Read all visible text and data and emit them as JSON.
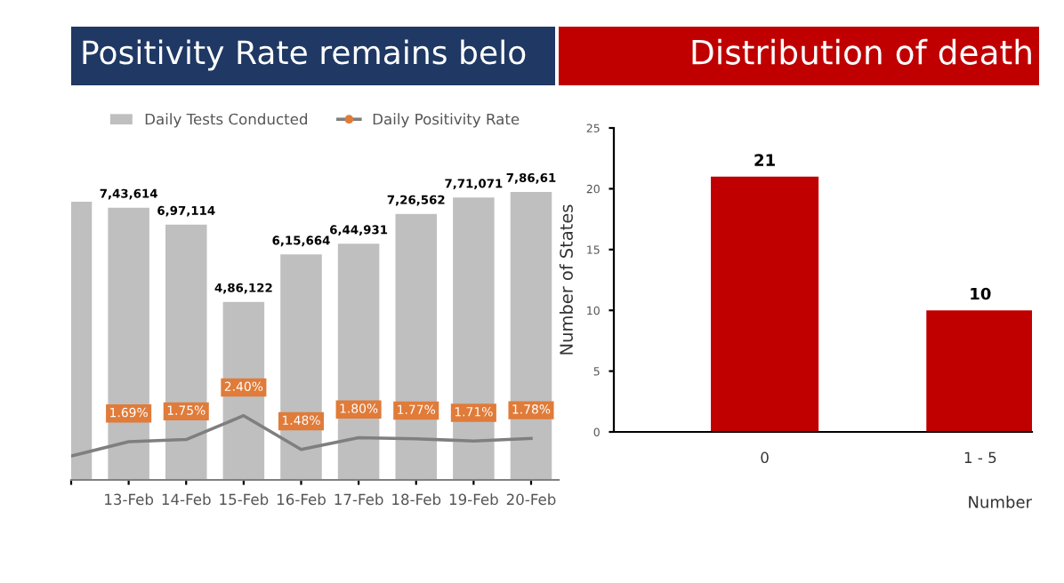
{
  "chart_data": [
    {
      "type": "bar",
      "title": "Positivity Rate remains belo",
      "categories": [
        null,
        "13-Feb",
        "14-Feb",
        "15-Feb",
        "16-Feb",
        "17-Feb",
        "18-Feb",
        "19-Feb",
        "20-Feb"
      ],
      "series": [
        {
          "name": "Daily Tests Conducted",
          "color": "#bfbfbf",
          "values": [
            760000,
            743614,
            697114,
            486122,
            615664,
            644931,
            726562,
            771071,
            786610
          ],
          "value_labels": [
            null,
            "7,43,614",
            "6,97,114",
            "4,86,122",
            "6,15,664",
            "6,44,931",
            "7,26,562",
            "7,71,071",
            "7,86,61"
          ]
        },
        {
          "name": "Daily Positivity Rate",
          "type": "line",
          "axis": "y2",
          "color": "#7f7f7f",
          "values": [
            1.3,
            1.69,
            1.75,
            2.4,
            1.48,
            1.8,
            1.77,
            1.71,
            1.78
          ],
          "value_labels": [
            null,
            "1.69%",
            "1.75%",
            "2.40%",
            "1.48%",
            "1.80%",
            "1.77%",
            "1.71%",
            "1.78%"
          ]
        }
      ],
      "legend": "top",
      "tick_labels": "x"
    },
    {
      "type": "bar",
      "title": "Distribution of death",
      "categories": [
        "0",
        "1 - 5"
      ],
      "values": [
        21,
        10
      ],
      "color": "#c00000",
      "data_labels": true,
      "ylabel": "Number of States",
      "xlabel": "Number",
      "ylim": [
        0,
        25
      ],
      "yticks": [
        0,
        5,
        10,
        15,
        20,
        25
      ],
      "grid": false
    }
  ]
}
